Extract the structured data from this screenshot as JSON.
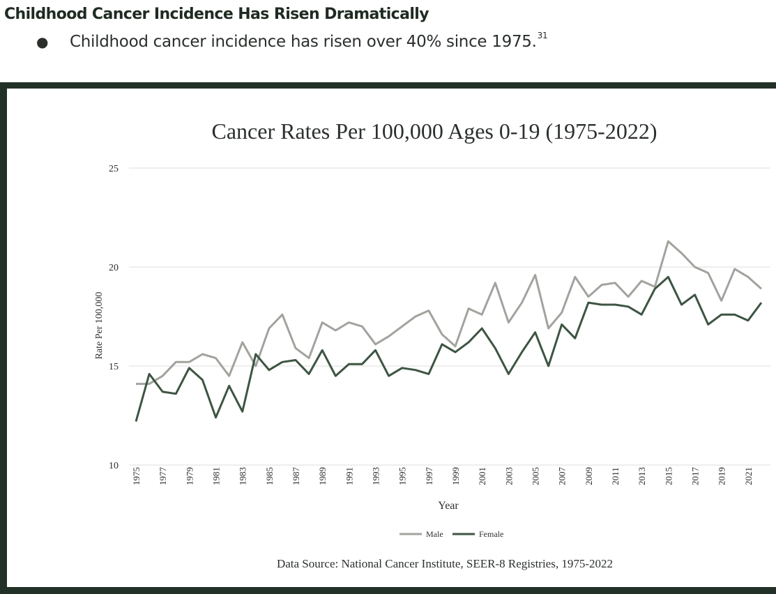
{
  "header": {
    "title": "Childhood Cancer Incidence Has Risen Dramatically",
    "bullet_text": "Childhood cancer incidence has risen over 40% since 1975.",
    "footnote": "31"
  },
  "chart_data": {
    "type": "line",
    "title": "Cancer Rates Per 100,000 Ages 0-19 (1975-2022)",
    "xlabel": "Year",
    "ylabel": "Rate Per 100,000",
    "ylim": [
      10,
      25
    ],
    "yticks": [
      10,
      15,
      20,
      25
    ],
    "grid": true,
    "legend_placement": "bottom-center",
    "source": "Data Source: National Cancer Institute, SEER-8 Registries, 1975-2022",
    "x": [
      1975,
      1976,
      1977,
      1978,
      1979,
      1980,
      1981,
      1982,
      1983,
      1984,
      1985,
      1986,
      1987,
      1988,
      1989,
      1990,
      1991,
      1992,
      1993,
      1994,
      1995,
      1996,
      1997,
      1998,
      1999,
      2000,
      2001,
      2002,
      2003,
      2004,
      2005,
      2006,
      2007,
      2008,
      2009,
      2010,
      2011,
      2012,
      2013,
      2014,
      2015,
      2016,
      2017,
      2018,
      2019,
      2020,
      2021,
      2022
    ],
    "xtick_labels": [
      "1975",
      "1977",
      "1979",
      "1981",
      "1983",
      "1985",
      "1987",
      "1989",
      "1991",
      "1993",
      "1995",
      "1997",
      "1999",
      "2001",
      "2003",
      "2005",
      "2007",
      "2009",
      "2011",
      "2013",
      "2015",
      "2017",
      "2019",
      "2021"
    ],
    "series": [
      {
        "name": "Male",
        "color": "#a1a39d",
        "values": [
          14.1,
          14.1,
          14.5,
          15.2,
          15.2,
          15.6,
          15.4,
          14.5,
          16.2,
          15.0,
          16.9,
          17.6,
          15.9,
          15.4,
          17.2,
          16.8,
          17.2,
          17.0,
          16.1,
          16.5,
          17.0,
          17.5,
          17.8,
          16.6,
          16.0,
          17.9,
          17.6,
          19.2,
          17.2,
          18.2,
          19.6,
          16.9,
          17.7,
          19.5,
          18.5,
          19.1,
          19.2,
          18.5,
          19.3,
          19.0,
          21.3,
          20.7,
          20.0,
          19.7,
          18.3,
          19.9,
          19.5,
          18.9
        ]
      },
      {
        "name": "Female",
        "color": "#3d5442",
        "values": [
          12.2,
          14.6,
          13.7,
          13.6,
          14.9,
          14.3,
          12.4,
          14.0,
          12.7,
          15.6,
          14.8,
          15.2,
          15.3,
          14.6,
          15.8,
          14.5,
          15.1,
          15.1,
          15.8,
          14.5,
          14.9,
          14.8,
          14.6,
          16.1,
          15.7,
          16.2,
          16.9,
          15.9,
          14.6,
          15.7,
          16.7,
          15.0,
          17.1,
          16.4,
          18.2,
          18.1,
          18.1,
          18.0,
          17.6,
          18.9,
          19.5,
          18.1,
          18.6,
          17.1,
          17.6,
          17.6,
          17.3,
          18.2
        ]
      }
    ]
  }
}
